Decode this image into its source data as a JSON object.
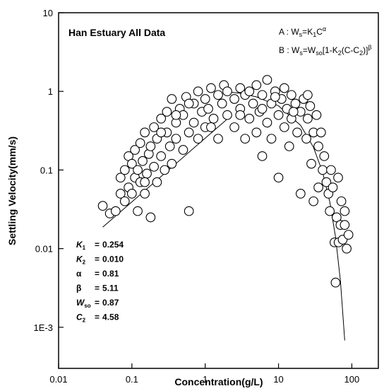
{
  "chart_data": {
    "type": "scatter",
    "title": "Han Estuary All Data",
    "x_label": "Concentration(g/L)",
    "y_label": "Settling Velocity(mm/s)",
    "log_x": true,
    "log_y": true,
    "xlim": [
      0.01,
      230
    ],
    "ylim": [
      0.0003,
      10
    ],
    "xticks": [
      0.01,
      0.1,
      1,
      10,
      100
    ],
    "yticks": [
      {
        "value": 0.001,
        "label": "1E-3"
      },
      0.01,
      0.1,
      1,
      10
    ],
    "series": [
      {
        "style": "marker",
        "color": "#000000",
        "x": [
          0.04,
          0.05,
          0.06,
          0.07,
          0.07,
          0.08,
          0.08,
          0.09,
          0.09,
          0.1,
          0.1,
          0.11,
          0.11,
          0.12,
          0.12,
          0.13,
          0.13,
          0.14,
          0.15,
          0.15,
          0.16,
          0.17,
          0.18,
          0.18,
          0.2,
          0.2,
          0.22,
          0.22,
          0.25,
          0.25,
          0.28,
          0.3,
          0.3,
          0.33,
          0.35,
          0.35,
          0.4,
          0.4,
          0.45,
          0.5,
          0.5,
          0.55,
          0.6,
          0.6,
          0.7,
          0.7,
          0.8,
          0.8,
          0.9,
          1,
          1,
          1.1,
          1.2,
          1.3,
          1.5,
          1.5,
          1.7,
          1.8,
          2,
          2,
          2.5,
          2.5,
          3,
          3,
          3.5,
          3.5,
          4,
          4,
          4.5,
          5,
          5,
          5.5,
          6,
          6,
          7,
          7,
          8,
          8,
          9,
          10,
          10,
          11,
          12,
          12,
          13,
          14,
          15,
          15,
          17,
          18,
          20,
          20,
          22,
          24,
          25,
          27,
          28,
          30,
          30,
          33,
          35,
          35,
          38,
          40,
          42,
          45,
          48,
          50,
          52,
          55,
          58,
          60,
          62,
          65,
          66,
          70,
          72,
          75,
          80,
          80,
          0.15,
          0.25,
          0.4,
          0.6,
          1.2,
          3,
          6,
          9,
          16,
          25,
          85,
          90
        ],
        "values": [
          0.035,
          0.028,
          0.03,
          0.05,
          0.08,
          0.04,
          0.1,
          0.06,
          0.15,
          0.05,
          0.12,
          0.08,
          0.18,
          0.03,
          0.1,
          0.07,
          0.22,
          0.13,
          0.05,
          0.3,
          0.09,
          0.16,
          0.025,
          0.2,
          0.11,
          0.35,
          0.07,
          0.25,
          0.15,
          0.45,
          0.1,
          0.3,
          0.55,
          0.2,
          0.12,
          0.8,
          0.4,
          0.25,
          0.6,
          0.18,
          0.5,
          0.85,
          0.3,
          0.03,
          0.7,
          0.4,
          0.25,
          1.0,
          0.55,
          0.35,
          0.8,
          0.6,
          1.1,
          0.45,
          0.9,
          0.25,
          0.7,
          1.2,
          0.5,
          1.0,
          0.35,
          0.8,
          0.6,
          1.1,
          0.25,
          0.9,
          0.45,
          1.0,
          0.7,
          0.3,
          1.2,
          0.55,
          0.9,
          0.15,
          1.4,
          0.4,
          0.7,
          0.25,
          1.0,
          0.5,
          0.08,
          0.8,
          0.35,
          1.1,
          0.6,
          0.2,
          0.9,
          0.45,
          0.7,
          0.3,
          0.55,
          0.05,
          0.8,
          0.25,
          0.45,
          0.65,
          0.12,
          0.3,
          0.04,
          0.5,
          0.2,
          0.06,
          0.3,
          0.1,
          0.15,
          0.07,
          0.05,
          0.03,
          0.1,
          0.06,
          0.012,
          0.0037,
          0.025,
          0.08,
          0.012,
          0.02,
          0.04,
          0.013,
          0.03,
          0.02,
          0.07,
          0.3,
          0.5,
          0.7,
          0.35,
          0.5,
          0.6,
          0.85,
          0.55,
          0.9,
          0.01,
          0.015
        ]
      },
      {
        "style": "line",
        "color": "#000000",
        "x": [
          0.04,
          0.1,
          0.3,
          1,
          2
        ],
        "values": [
          0.01875,
          0.0393,
          0.0958,
          0.254,
          0.445
        ]
      },
      {
        "style": "line",
        "color": "#000000",
        "x": [
          2,
          3,
          5,
          10,
          20,
          30,
          40,
          50,
          60,
          70,
          80
        ],
        "values": [
          0.991,
          0.943,
          0.851,
          0.654,
          0.37,
          0.194,
          0.0931,
          0.0394,
          0.014,
          0.00383,
          0.00068
        ]
      }
    ],
    "equations": [
      [
        {
          "t": "A : W",
          "pos": "base"
        },
        {
          "t": "s",
          "pos": "sub"
        },
        {
          "t": "=",
          "pos": "base"
        },
        {
          "t": "K",
          "pos": "base"
        },
        {
          "t": "1",
          "pos": "sub"
        },
        {
          "t": "C",
          "pos": "base"
        },
        {
          "t": "α",
          "pos": "sup"
        }
      ],
      [
        {
          "t": "B : W",
          "pos": "base"
        },
        {
          "t": "s",
          "pos": "sub"
        },
        {
          "t": "=W",
          "pos": "base"
        },
        {
          "t": "so",
          "pos": "sub"
        },
        {
          "t": "[1-K",
          "pos": "base"
        },
        {
          "t": "2",
          "pos": "sub"
        },
        {
          "t": "(C-C",
          "pos": "base"
        },
        {
          "t": "2",
          "pos": "sub"
        },
        {
          "t": ")]",
          "pos": "base"
        },
        {
          "t": "β",
          "pos": "sup"
        }
      ]
    ],
    "params_sep": "=",
    "params": [
      {
        "name": "K",
        "sub": "1",
        "value": "0.254"
      },
      {
        "name": "K",
        "sub": "2",
        "value": "0.010"
      },
      {
        "name": "α",
        "value": "0.81"
      },
      {
        "name": "β",
        "value": "5.11"
      },
      {
        "name": "W",
        "sub": "so",
        "value": "0.87"
      },
      {
        "name": "C",
        "sub": "2",
        "value": "4.58"
      }
    ]
  }
}
